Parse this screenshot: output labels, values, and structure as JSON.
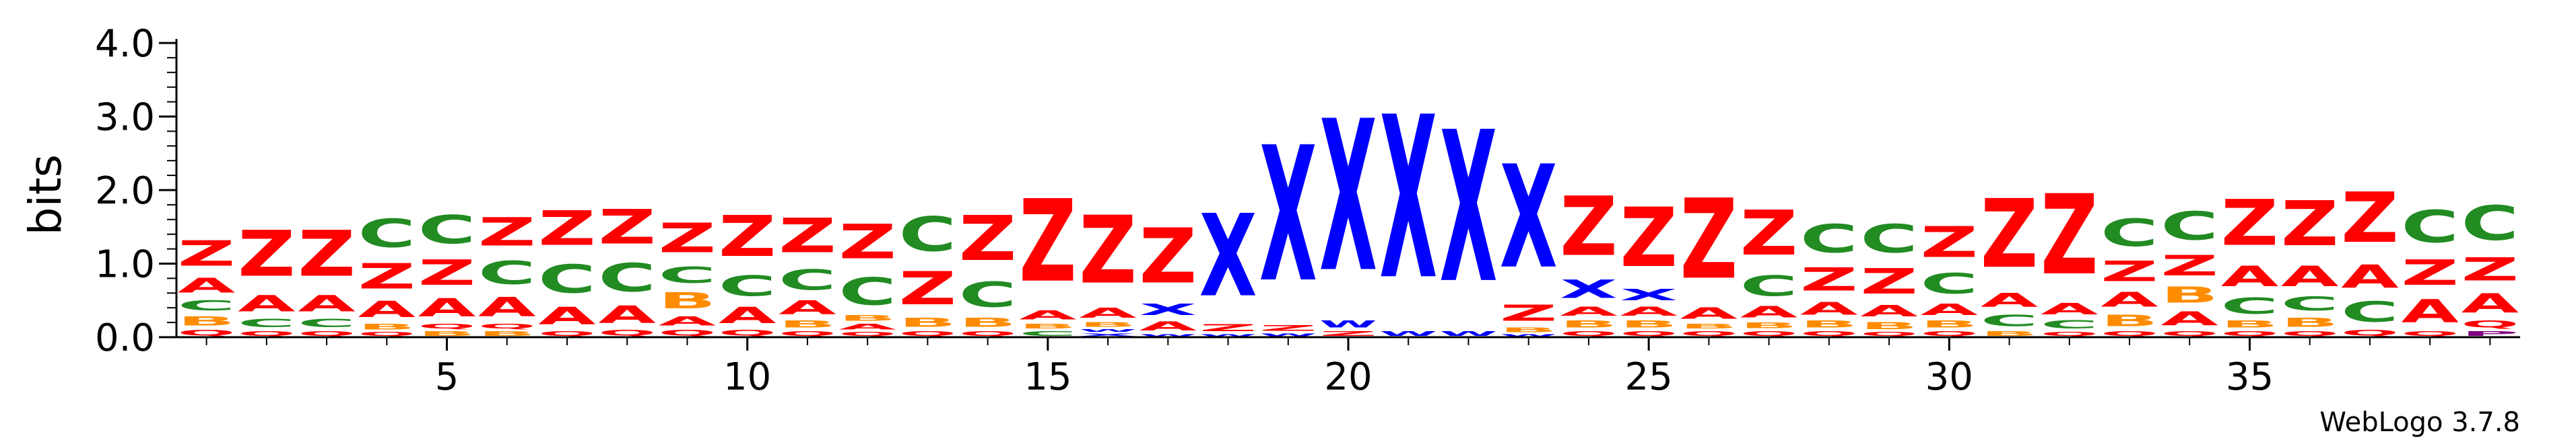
{
  "chart_data": {
    "type": "sequence-logo",
    "ylabel": "bits",
    "ylim": [
      0,
      4.0
    ],
    "y_ticks": [
      {
        "value": 0.0,
        "label": "0.0"
      },
      {
        "value": 1.0,
        "label": "1.0"
      },
      {
        "value": 2.0,
        "label": "2.0"
      },
      {
        "value": 3.0,
        "label": "3.0"
      },
      {
        "value": 4.0,
        "label": "4.0"
      }
    ],
    "y_minor_step": 0.2,
    "xlim": [
      1,
      39
    ],
    "x_ticks": [
      {
        "value": 5,
        "label": "5"
      },
      {
        "value": 10,
        "label": "10"
      },
      {
        "value": 15,
        "label": "15"
      },
      {
        "value": 20,
        "label": "20"
      },
      {
        "value": 25,
        "label": "25"
      },
      {
        "value": 30,
        "label": "30"
      },
      {
        "value": 35,
        "label": "35"
      }
    ],
    "credit": "WebLogo 3.7.8",
    "colors": {
      "Z": "#ff0000",
      "A": "#ff0000",
      "Q": "#ff0000",
      "C": "#228b22",
      "B": "#ff8c00",
      "X": "#0000ff",
      "W": "#0000ff",
      "Y": "#0000ff",
      "P": "#800080"
    },
    "positions": [
      {
        "pos": 1,
        "stack": [
          [
            "Q",
            0.12
          ],
          [
            "B",
            0.2
          ],
          [
            "C",
            0.22
          ],
          [
            "A",
            0.32
          ],
          [
            "Z",
            0.55
          ]
        ]
      },
      {
        "pos": 2,
        "stack": [
          [
            "Q",
            0.1
          ],
          [
            "C",
            0.18
          ],
          [
            "A",
            0.35
          ],
          [
            "Z",
            1.0
          ]
        ]
      },
      {
        "pos": 3,
        "stack": [
          [
            "Q",
            0.1
          ],
          [
            "C",
            0.18
          ],
          [
            "A",
            0.35
          ],
          [
            "Z",
            1.0
          ]
        ]
      },
      {
        "pos": 4,
        "stack": [
          [
            "Q",
            0.08
          ],
          [
            "B",
            0.12
          ],
          [
            "A",
            0.35
          ],
          [
            "Z",
            0.55
          ],
          [
            "C",
            0.62
          ]
        ]
      },
      {
        "pos": 5,
        "stack": [
          [
            "B",
            0.1
          ],
          [
            "Q",
            0.1
          ],
          [
            "A",
            0.4
          ],
          [
            "Z",
            0.55
          ],
          [
            "C",
            0.62
          ]
        ]
      },
      {
        "pos": 6,
        "stack": [
          [
            "B",
            0.1
          ],
          [
            "Q",
            0.1
          ],
          [
            "A",
            0.42
          ],
          [
            "C",
            0.5
          ],
          [
            "Z",
            0.62
          ]
        ]
      },
      {
        "pos": 7,
        "stack": [
          [
            "Q",
            0.1
          ],
          [
            "A",
            0.38
          ],
          [
            "C",
            0.62
          ],
          [
            "Z",
            0.75
          ]
        ]
      },
      {
        "pos": 8,
        "stack": [
          [
            "Q",
            0.12
          ],
          [
            "A",
            0.38
          ],
          [
            "C",
            0.62
          ],
          [
            "Z",
            0.75
          ]
        ]
      },
      {
        "pos": 9,
        "stack": [
          [
            "Q",
            0.12
          ],
          [
            "A",
            0.2
          ],
          [
            "B",
            0.35
          ],
          [
            "C",
            0.35
          ],
          [
            "Z",
            0.65
          ]
        ]
      },
      {
        "pos": 10,
        "stack": [
          [
            "Q",
            0.12
          ],
          [
            "A",
            0.35
          ],
          [
            "C",
            0.45
          ],
          [
            "Z",
            0.9
          ]
        ]
      },
      {
        "pos": 11,
        "stack": [
          [
            "Q",
            0.1
          ],
          [
            "B",
            0.15
          ],
          [
            "A",
            0.3
          ],
          [
            "C",
            0.45
          ],
          [
            "Z",
            0.75
          ]
        ]
      },
      {
        "pos": 12,
        "stack": [
          [
            "Q",
            0.08
          ],
          [
            "A",
            0.12
          ],
          [
            "B",
            0.12
          ],
          [
            "C",
            0.6
          ],
          [
            "Z",
            0.75
          ]
        ]
      },
      {
        "pos": 13,
        "stack": [
          [
            "Q",
            0.1
          ],
          [
            "B",
            0.2
          ],
          [
            "Z",
            0.72
          ],
          [
            "C",
            0.75
          ]
        ]
      },
      {
        "pos": 14,
        "stack": [
          [
            "Q",
            0.1
          ],
          [
            "B",
            0.2
          ],
          [
            "C",
            0.55
          ],
          [
            "Z",
            0.98
          ]
        ]
      },
      {
        "pos": 15,
        "stack": [
          [
            "C",
            0.1
          ],
          [
            "B",
            0.1
          ],
          [
            "A",
            0.2
          ],
          [
            "Z",
            1.8
          ]
        ]
      },
      {
        "pos": 16,
        "stack": [
          [
            "X",
            0.06
          ],
          [
            "W",
            0.06
          ],
          [
            "B",
            0.1
          ],
          [
            "A",
            0.22
          ],
          [
            "Z",
            1.48
          ]
        ]
      },
      {
        "pos": 17,
        "stack": [
          [
            "W",
            0.05
          ],
          [
            "A",
            0.2
          ],
          [
            "X",
            0.25
          ],
          [
            "Z",
            1.2
          ]
        ]
      },
      {
        "pos": 18,
        "stack": [
          [
            "W",
            0.05
          ],
          [
            "Z",
            0.15
          ],
          [
            "X",
            1.8
          ]
        ]
      },
      {
        "pos": 19,
        "stack": [
          [
            "W",
            0.06
          ],
          [
            "Z",
            0.12
          ],
          [
            "X",
            2.95
          ]
        ]
      },
      {
        "pos": 20,
        "stack": [
          [
            "Z",
            0.1
          ],
          [
            "W",
            0.15
          ],
          [
            "X",
            3.3
          ]
        ]
      },
      {
        "pos": 21,
        "stack": [
          [
            "W",
            0.1
          ],
          [
            "X",
            3.55
          ]
        ]
      },
      {
        "pos": 22,
        "stack": [
          [
            "W",
            0.1
          ],
          [
            "X",
            3.3
          ]
        ]
      },
      {
        "pos": 23,
        "stack": [
          [
            "W",
            0.05
          ],
          [
            "B",
            0.1
          ],
          [
            "Z",
            0.35
          ],
          [
            "X",
            2.25
          ]
        ]
      },
      {
        "pos": 24,
        "stack": [
          [
            "Q",
            0.1
          ],
          [
            "B",
            0.15
          ],
          [
            "A",
            0.2
          ],
          [
            "X",
            0.4
          ],
          [
            "Z",
            1.3
          ]
        ]
      },
      {
        "pos": 25,
        "stack": [
          [
            "Q",
            0.1
          ],
          [
            "B",
            0.15
          ],
          [
            "A",
            0.2
          ],
          [
            "X",
            0.25
          ],
          [
            "Z",
            1.3
          ]
        ]
      },
      {
        "pos": 26,
        "stack": [
          [
            "Q",
            0.1
          ],
          [
            "B",
            0.1
          ],
          [
            "A",
            0.25
          ],
          [
            "Z",
            1.75
          ]
        ]
      },
      {
        "pos": 27,
        "stack": [
          [
            "Q",
            0.1
          ],
          [
            "B",
            0.12
          ],
          [
            "A",
            0.25
          ],
          [
            "C",
            0.45
          ],
          [
            "Z",
            0.98
          ]
        ]
      },
      {
        "pos": 28,
        "stack": [
          [
            "Q",
            0.1
          ],
          [
            "B",
            0.15
          ],
          [
            "A",
            0.28
          ],
          [
            "Z",
            0.5
          ],
          [
            "C",
            0.62
          ]
        ]
      },
      {
        "pos": 29,
        "stack": [
          [
            "Q",
            0.08
          ],
          [
            "B",
            0.15
          ],
          [
            "A",
            0.25
          ],
          [
            "Z",
            0.55
          ],
          [
            "C",
            0.62
          ]
        ]
      },
      {
        "pos": 30,
        "stack": [
          [
            "Q",
            0.1
          ],
          [
            "B",
            0.15
          ],
          [
            "A",
            0.25
          ],
          [
            "C",
            0.45
          ],
          [
            "Z",
            0.68
          ]
        ]
      },
      {
        "pos": 31,
        "stack": [
          [
            "B",
            0.1
          ],
          [
            "C",
            0.25
          ],
          [
            "A",
            0.3
          ],
          [
            "Z",
            1.5
          ]
        ]
      },
      {
        "pos": 32,
        "stack": [
          [
            "Q",
            0.08
          ],
          [
            "C",
            0.18
          ],
          [
            "A",
            0.25
          ],
          [
            "Z",
            1.75
          ]
        ]
      },
      {
        "pos": 33,
        "stack": [
          [
            "Q",
            0.1
          ],
          [
            "B",
            0.25
          ],
          [
            "A",
            0.32
          ],
          [
            "Z",
            0.45
          ],
          [
            "C",
            0.6
          ]
        ]
      },
      {
        "pos": 34,
        "stack": [
          [
            "Q",
            0.1
          ],
          [
            "A",
            0.3
          ],
          [
            "B",
            0.35
          ],
          [
            "Z",
            0.45
          ],
          [
            "C",
            0.62
          ]
        ]
      },
      {
        "pos": 35,
        "stack": [
          [
            "Q",
            0.1
          ],
          [
            "B",
            0.15
          ],
          [
            "C",
            0.35
          ],
          [
            "A",
            0.45
          ],
          [
            "Z",
            1.0
          ]
        ]
      },
      {
        "pos": 36,
        "stack": [
          [
            "Q",
            0.1
          ],
          [
            "B",
            0.2
          ],
          [
            "C",
            0.3
          ],
          [
            "A",
            0.45
          ],
          [
            "Z",
            0.98
          ]
        ]
      },
      {
        "pos": 37,
        "stack": [
          [
            "Q",
            0.12
          ],
          [
            "C",
            0.45
          ],
          [
            "A",
            0.5
          ],
          [
            "Z",
            1.1
          ]
        ]
      },
      {
        "pos": 38,
        "stack": [
          [
            "Q",
            0.1
          ],
          [
            "A",
            0.5
          ],
          [
            "Z",
            0.55
          ],
          [
            "C",
            0.7
          ]
        ]
      },
      {
        "pos": 39,
        "stack": [
          [
            "P",
            0.1
          ],
          [
            "Q",
            0.15
          ],
          [
            "A",
            0.42
          ],
          [
            "Z",
            0.5
          ],
          [
            "C",
            0.75
          ]
        ]
      }
    ]
  }
}
